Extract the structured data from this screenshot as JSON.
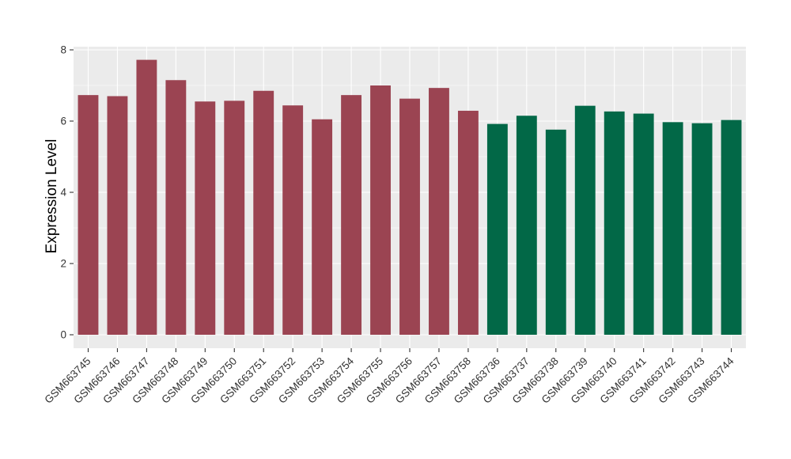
{
  "figure": {
    "background_color": "#ffffff",
    "panel_background_color": "#ebebeb",
    "gridline_color": "#ffffff",
    "tick_color": "#333333",
    "axis_text_color": "#333333",
    "axis_title_color": "#000000"
  },
  "chart_data": {
    "type": "bar",
    "title": "",
    "xlabel": "",
    "ylabel": "Expression Level",
    "ylim": [
      -0.38,
      8.09
    ],
    "yticks": [
      0,
      2,
      4,
      6,
      8
    ],
    "yticks_minor": [
      1,
      3,
      5,
      7
    ],
    "grid": "major and minor horizontal white gridlines, vertical white gridline at each category center",
    "legend_position": "none",
    "bar_group_colors": {
      "maroon": "#9b4452",
      "green": "#026847"
    },
    "categories": [
      "GSM663745",
      "GSM663746",
      "GSM663747",
      "GSM663748",
      "GSM663749",
      "GSM663750",
      "GSM663751",
      "GSM663752",
      "GSM663753",
      "GSM663754",
      "GSM663755",
      "GSM663756",
      "GSM663757",
      "GSM663758",
      "GSM663736",
      "GSM663737",
      "GSM663738",
      "GSM663739",
      "GSM663740",
      "GSM663741",
      "GSM663742",
      "GSM663743",
      "GSM663744"
    ],
    "values": [
      6.73,
      6.7,
      7.72,
      7.15,
      6.55,
      6.57,
      6.85,
      6.44,
      6.05,
      6.73,
      7.0,
      6.63,
      6.93,
      6.29,
      5.92,
      6.15,
      5.76,
      6.43,
      6.27,
      6.21,
      5.97,
      5.94,
      6.03
    ],
    "groups": [
      "maroon",
      "maroon",
      "maroon",
      "maroon",
      "maroon",
      "maroon",
      "maroon",
      "maroon",
      "maroon",
      "maroon",
      "maroon",
      "maroon",
      "maroon",
      "maroon",
      "green",
      "green",
      "green",
      "green",
      "green",
      "green",
      "green",
      "green",
      "green"
    ]
  }
}
